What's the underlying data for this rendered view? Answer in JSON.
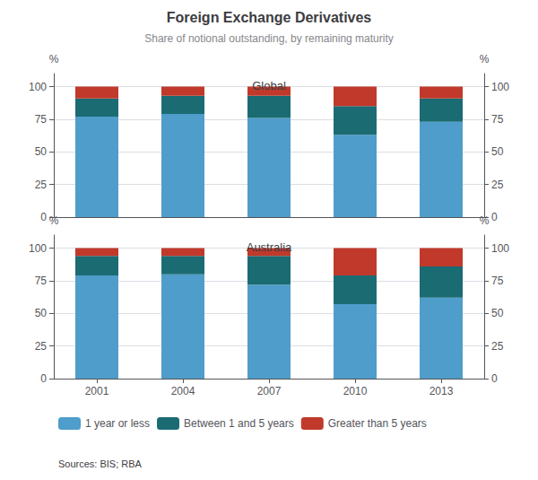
{
  "chart_data": [
    {
      "type": "bar",
      "title": "Foreign Exchange Derivatives",
      "subtitle": "Share of notional outstanding, by remaining maturity",
      "annotations": [
        "Global"
      ],
      "categories": [
        "2001",
        "2004",
        "2007",
        "2010",
        "2013"
      ],
      "series": [
        {
          "name": "1 year or less",
          "color": "#4F9DCA",
          "values": [
            77,
            79,
            76,
            63,
            73
          ]
        },
        {
          "name": "Between 1 and 5 years",
          "color": "#1B6B73",
          "values": [
            14,
            14,
            17,
            22,
            18
          ]
        },
        {
          "name": "Greater than 5 years",
          "color": "#C0392B",
          "values": [
            9,
            7,
            7,
            15,
            9
          ]
        }
      ],
      "stacked": true,
      "ylabel": "%",
      "y2label": "%",
      "ylim": [
        0,
        110
      ],
      "yticks": [
        0,
        25,
        50,
        75,
        100
      ],
      "y2lim": [
        0,
        110
      ],
      "y2ticks": [
        0,
        25,
        50,
        75,
        100
      ],
      "grid": true,
      "tick_labels": "y"
    },
    {
      "type": "bar",
      "annotations": [
        "Australia",
        "Sources: BIS; RBA"
      ],
      "categories": [
        "2001",
        "2004",
        "2007",
        "2010",
        "2013"
      ],
      "series": [
        {
          "name": "1 year or less",
          "color": "#4F9DCA",
          "values": [
            79,
            80,
            72,
            57,
            62
          ]
        },
        {
          "name": "Between 1 and 5 years",
          "color": "#1B6B73",
          "values": [
            15,
            14,
            22,
            22,
            24
          ]
        },
        {
          "name": "Greater than 5 years",
          "color": "#C0392B",
          "values": [
            6,
            6,
            6,
            21,
            14
          ]
        }
      ],
      "stacked": true,
      "ylabel": "%",
      "y2label": "%",
      "ylim": [
        0,
        110
      ],
      "yticks": [
        0,
        25,
        50,
        75,
        100
      ],
      "y2lim": [
        0,
        110
      ],
      "y2ticks": [
        0,
        25,
        50,
        75,
        100
      ],
      "grid": true,
      "legend": "bottom"
    }
  ]
}
